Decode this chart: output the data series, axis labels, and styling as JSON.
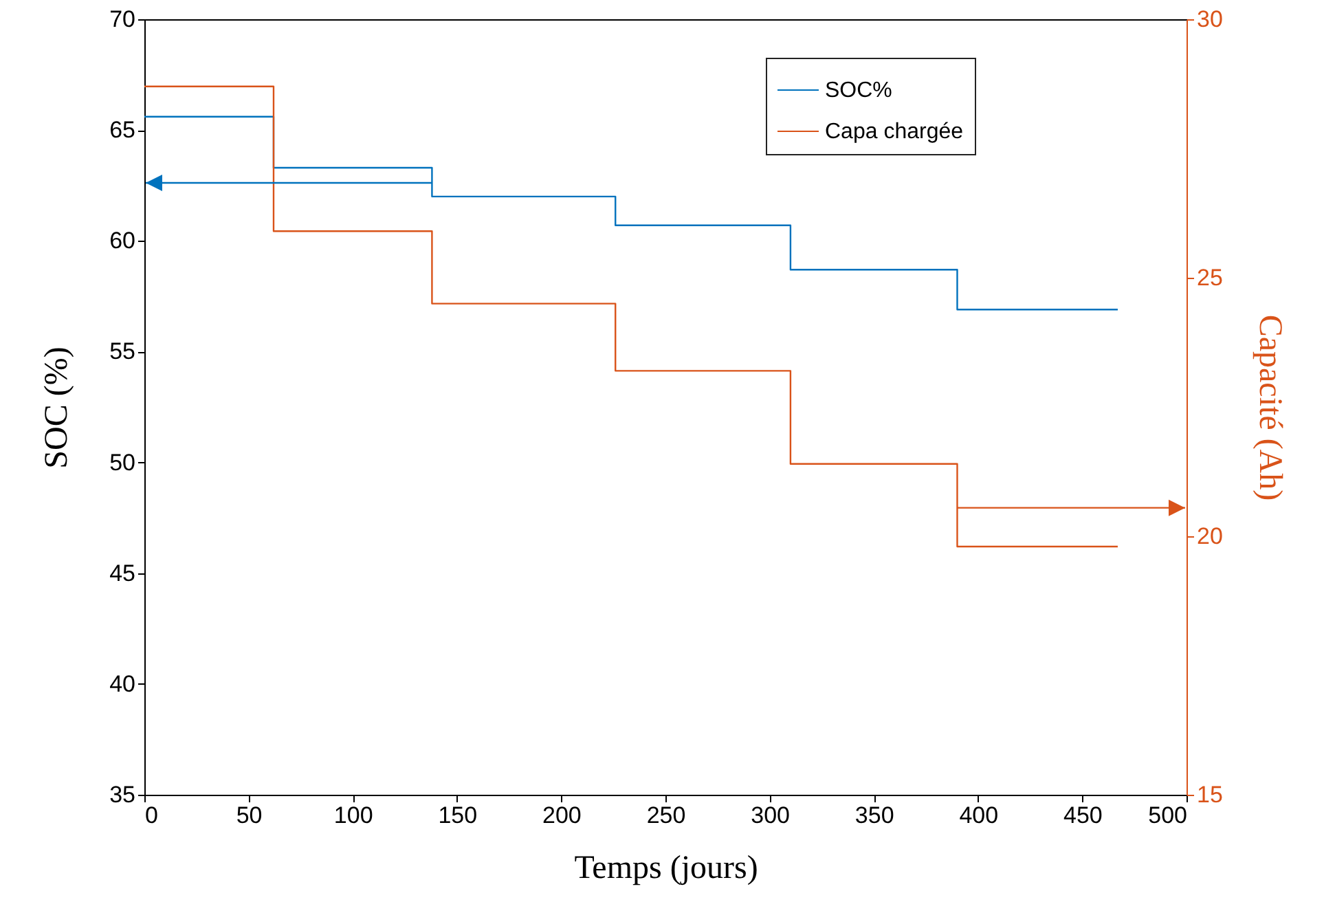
{
  "chart_data": {
    "type": "step",
    "xlabel": "Temps (jours)",
    "ylabel": "SOC (%)",
    "y2label": "Capacité (Ah)",
    "x": [
      0,
      62,
      138,
      226,
      310,
      390,
      467
    ],
    "series": [
      {
        "name": "SOC%",
        "color": "#0072bd",
        "values": [
          65.6,
          63.3,
          62.0,
          60.7,
          58.7,
          56.9,
          56.9
        ]
      },
      {
        "name": "Capa chargée",
        "color": "#d95319",
        "axis": "y2",
        "values": [
          28.7,
          25.9,
          24.5,
          23.2,
          21.4,
          19.8,
          19.8
        ]
      }
    ],
    "xlim": [
      0,
      500
    ],
    "xticks": [
      0,
      50,
      100,
      150,
      200,
      250,
      300,
      350,
      400,
      450,
      500
    ],
    "ylim": [
      35,
      70
    ],
    "yticks": [
      35,
      40,
      45,
      50,
      55,
      60,
      65,
      70
    ],
    "y2lim": [
      15,
      30
    ],
    "y2ticks": [
      15,
      20,
      25,
      30
    ],
    "grid": false,
    "legend": "top right"
  }
}
